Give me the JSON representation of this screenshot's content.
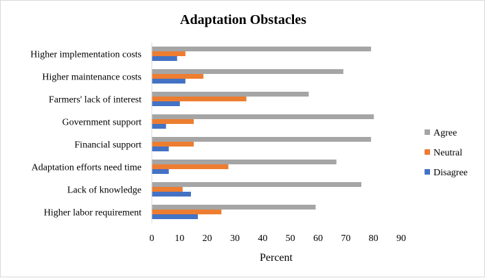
{
  "chart_data": {
    "type": "bar",
    "orientation": "horizontal",
    "title": "Adaptation Obstacles",
    "xlabel": "Percent",
    "ylabel": "",
    "xlim": [
      0,
      90
    ],
    "xticks": [
      0,
      10,
      20,
      30,
      40,
      50,
      60,
      70,
      80,
      90
    ],
    "grid": false,
    "legend_position": "right",
    "categories": [
      "Higher implementation costs",
      "Higher maintenance costs",
      "Farmers' lack of interest",
      "Government support",
      "Financial support",
      "Adaptation efforts need time",
      "Lack of knowledge",
      "Higher labor requirement"
    ],
    "series": [
      {
        "name": "Agree",
        "color": "#a5a5a5",
        "values": [
          79,
          69,
          56.5,
          80,
          79,
          66.5,
          75.5,
          59
        ]
      },
      {
        "name": "Neutral",
        "color": "#ed7d31",
        "values": [
          12,
          18.5,
          34,
          15,
          15,
          27.5,
          11,
          25
        ]
      },
      {
        "name": "Disagree",
        "color": "#4472c4",
        "values": [
          9,
          12,
          10,
          5,
          6,
          6,
          14,
          16.5
        ]
      }
    ],
    "legend_order": [
      "Agree",
      "Neutral",
      "Disagree"
    ]
  }
}
